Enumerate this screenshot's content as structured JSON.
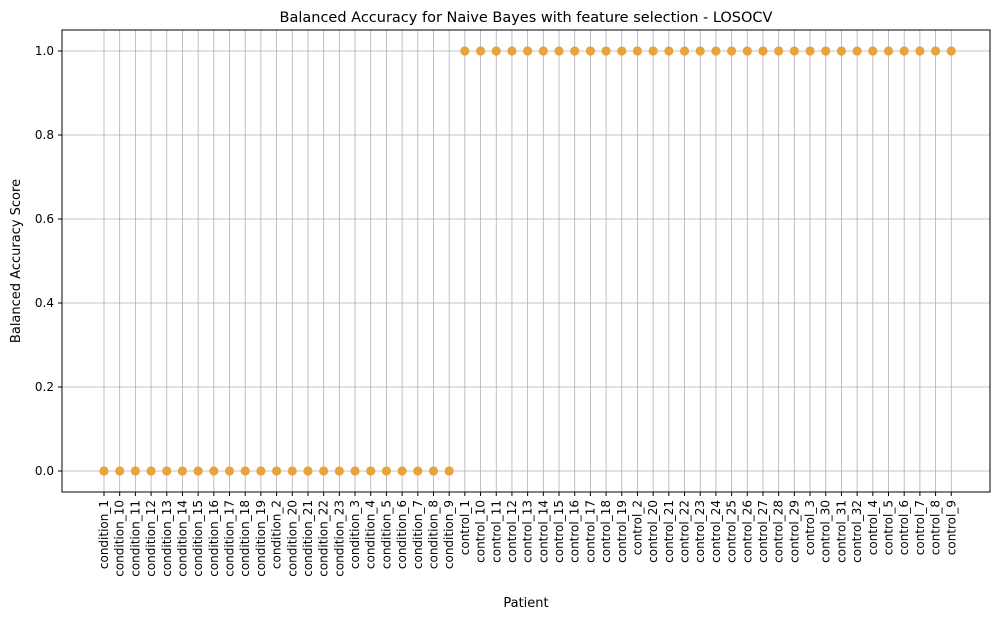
{
  "chart_data": {
    "type": "scatter",
    "title": "Balanced Accuracy for Naive Bayes with feature selection - LOSOCV",
    "xlabel": "Patient",
    "ylabel": "Balanced Accuracy Score",
    "ylim": [
      -0.05,
      1.05
    ],
    "yticks": [
      0.0,
      0.2,
      0.4,
      0.6,
      0.8,
      1.0
    ],
    "ytick_labels": [
      "0.0",
      "0.2",
      "0.4",
      "0.6",
      "0.8",
      "1.0"
    ],
    "grid": true,
    "marker_color": "#e8a33d",
    "categories": [
      "condition_1",
      "condition_10",
      "condition_11",
      "condition_12",
      "condition_13",
      "condition_14",
      "condition_15",
      "condition_16",
      "condition_17",
      "condition_18",
      "condition_19",
      "condition_2",
      "condition_20",
      "condition_21",
      "condition_22",
      "condition_23",
      "condition_3",
      "condition_4",
      "condition_5",
      "condition_6",
      "condition_7",
      "condition_8",
      "condition_9",
      "control_1",
      "control_10",
      "control_11",
      "control_12",
      "control_13",
      "control_14",
      "control_15",
      "control_16",
      "control_17",
      "control_18",
      "control_19",
      "control_2",
      "control_20",
      "control_21",
      "control_22",
      "control_23",
      "control_24",
      "control_25",
      "control_26",
      "control_27",
      "control_28",
      "control_29",
      "control_3",
      "control_30",
      "control_31",
      "control_32",
      "control_4",
      "control_5",
      "control_6",
      "control_7",
      "control_8",
      "control_9"
    ],
    "values": [
      0,
      0,
      0,
      0,
      0,
      0,
      0,
      0,
      0,
      0,
      0,
      0,
      0,
      0,
      0,
      0,
      0,
      0,
      0,
      0,
      0,
      0,
      0,
      1,
      1,
      1,
      1,
      1,
      1,
      1,
      1,
      1,
      1,
      1,
      1,
      1,
      1,
      1,
      1,
      1,
      1,
      1,
      1,
      1,
      1,
      1,
      1,
      1,
      1,
      1,
      1,
      1,
      1,
      1,
      1
    ]
  }
}
